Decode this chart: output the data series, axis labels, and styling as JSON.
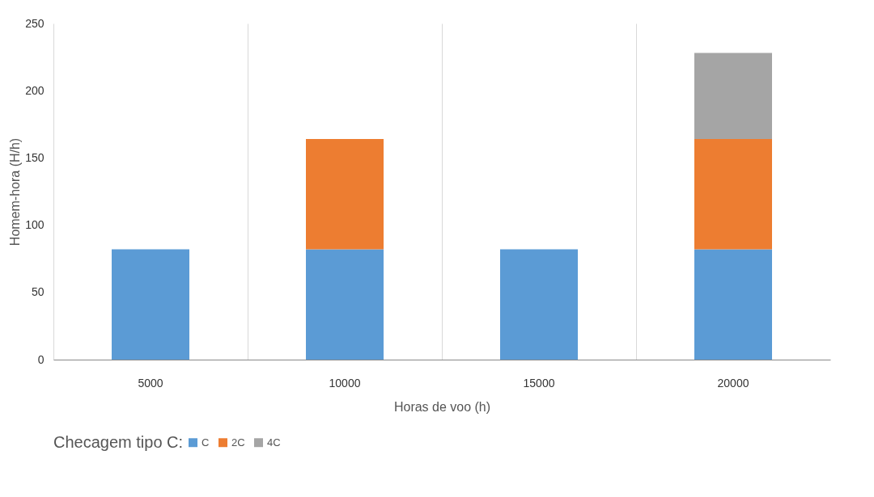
{
  "chart_data": {
    "type": "bar",
    "xlabel": "Horas de voo (h)",
    "ylabel": "Homem-hora (H/h)",
    "legend_title": "Checagem tipo C:",
    "categories": [
      "5000",
      "10000",
      "15000",
      "20000"
    ],
    "series": [
      {
        "name": "C",
        "color": "#5b9bd5",
        "values": [
          82,
          82,
          82,
          82
        ]
      },
      {
        "name": "2C",
        "color": "#ed7d31",
        "values": [
          null,
          82,
          null,
          82
        ]
      },
      {
        "name": "4C",
        "color": "#a5a5a5",
        "values": [
          null,
          null,
          null,
          64
        ]
      }
    ],
    "stacked": true,
    "ylim": [
      0,
      250
    ],
    "yticks": [
      0,
      50,
      100,
      150,
      200,
      250
    ],
    "grid": "x",
    "legend": "bottom"
  }
}
